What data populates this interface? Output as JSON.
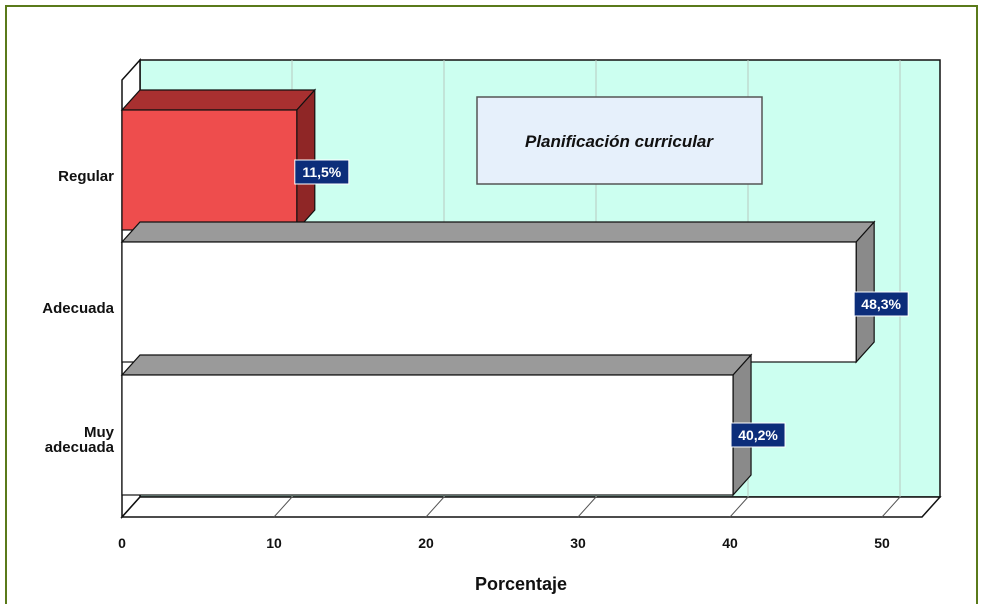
{
  "chart_data": {
    "type": "bar",
    "orientation": "horizontal",
    "title": "",
    "legend": "Planificación curricular",
    "xlabel": "Porcentaje",
    "ylabel": "",
    "xlim": [
      0,
      50
    ],
    "xticks": [
      "0",
      "10",
      "20",
      "30",
      "40",
      "50"
    ],
    "grid": true,
    "categories": [
      {
        "label_lines": [
          "Regular"
        ]
      },
      {
        "label_lines": [
          "Adecuada"
        ]
      },
      {
        "label_lines": [
          "Muy",
          "adecuada"
        ]
      }
    ],
    "values": [
      11.5,
      48.3,
      40.2
    ],
    "data_labels": [
      "11,5%",
      "48,3%",
      "40,2%"
    ],
    "bar_colors": [
      "#ee4d4d",
      "#ffffff",
      "#ffffff"
    ],
    "plot_background": "#ccfff0",
    "label_box_color": "#0c2d7a"
  }
}
